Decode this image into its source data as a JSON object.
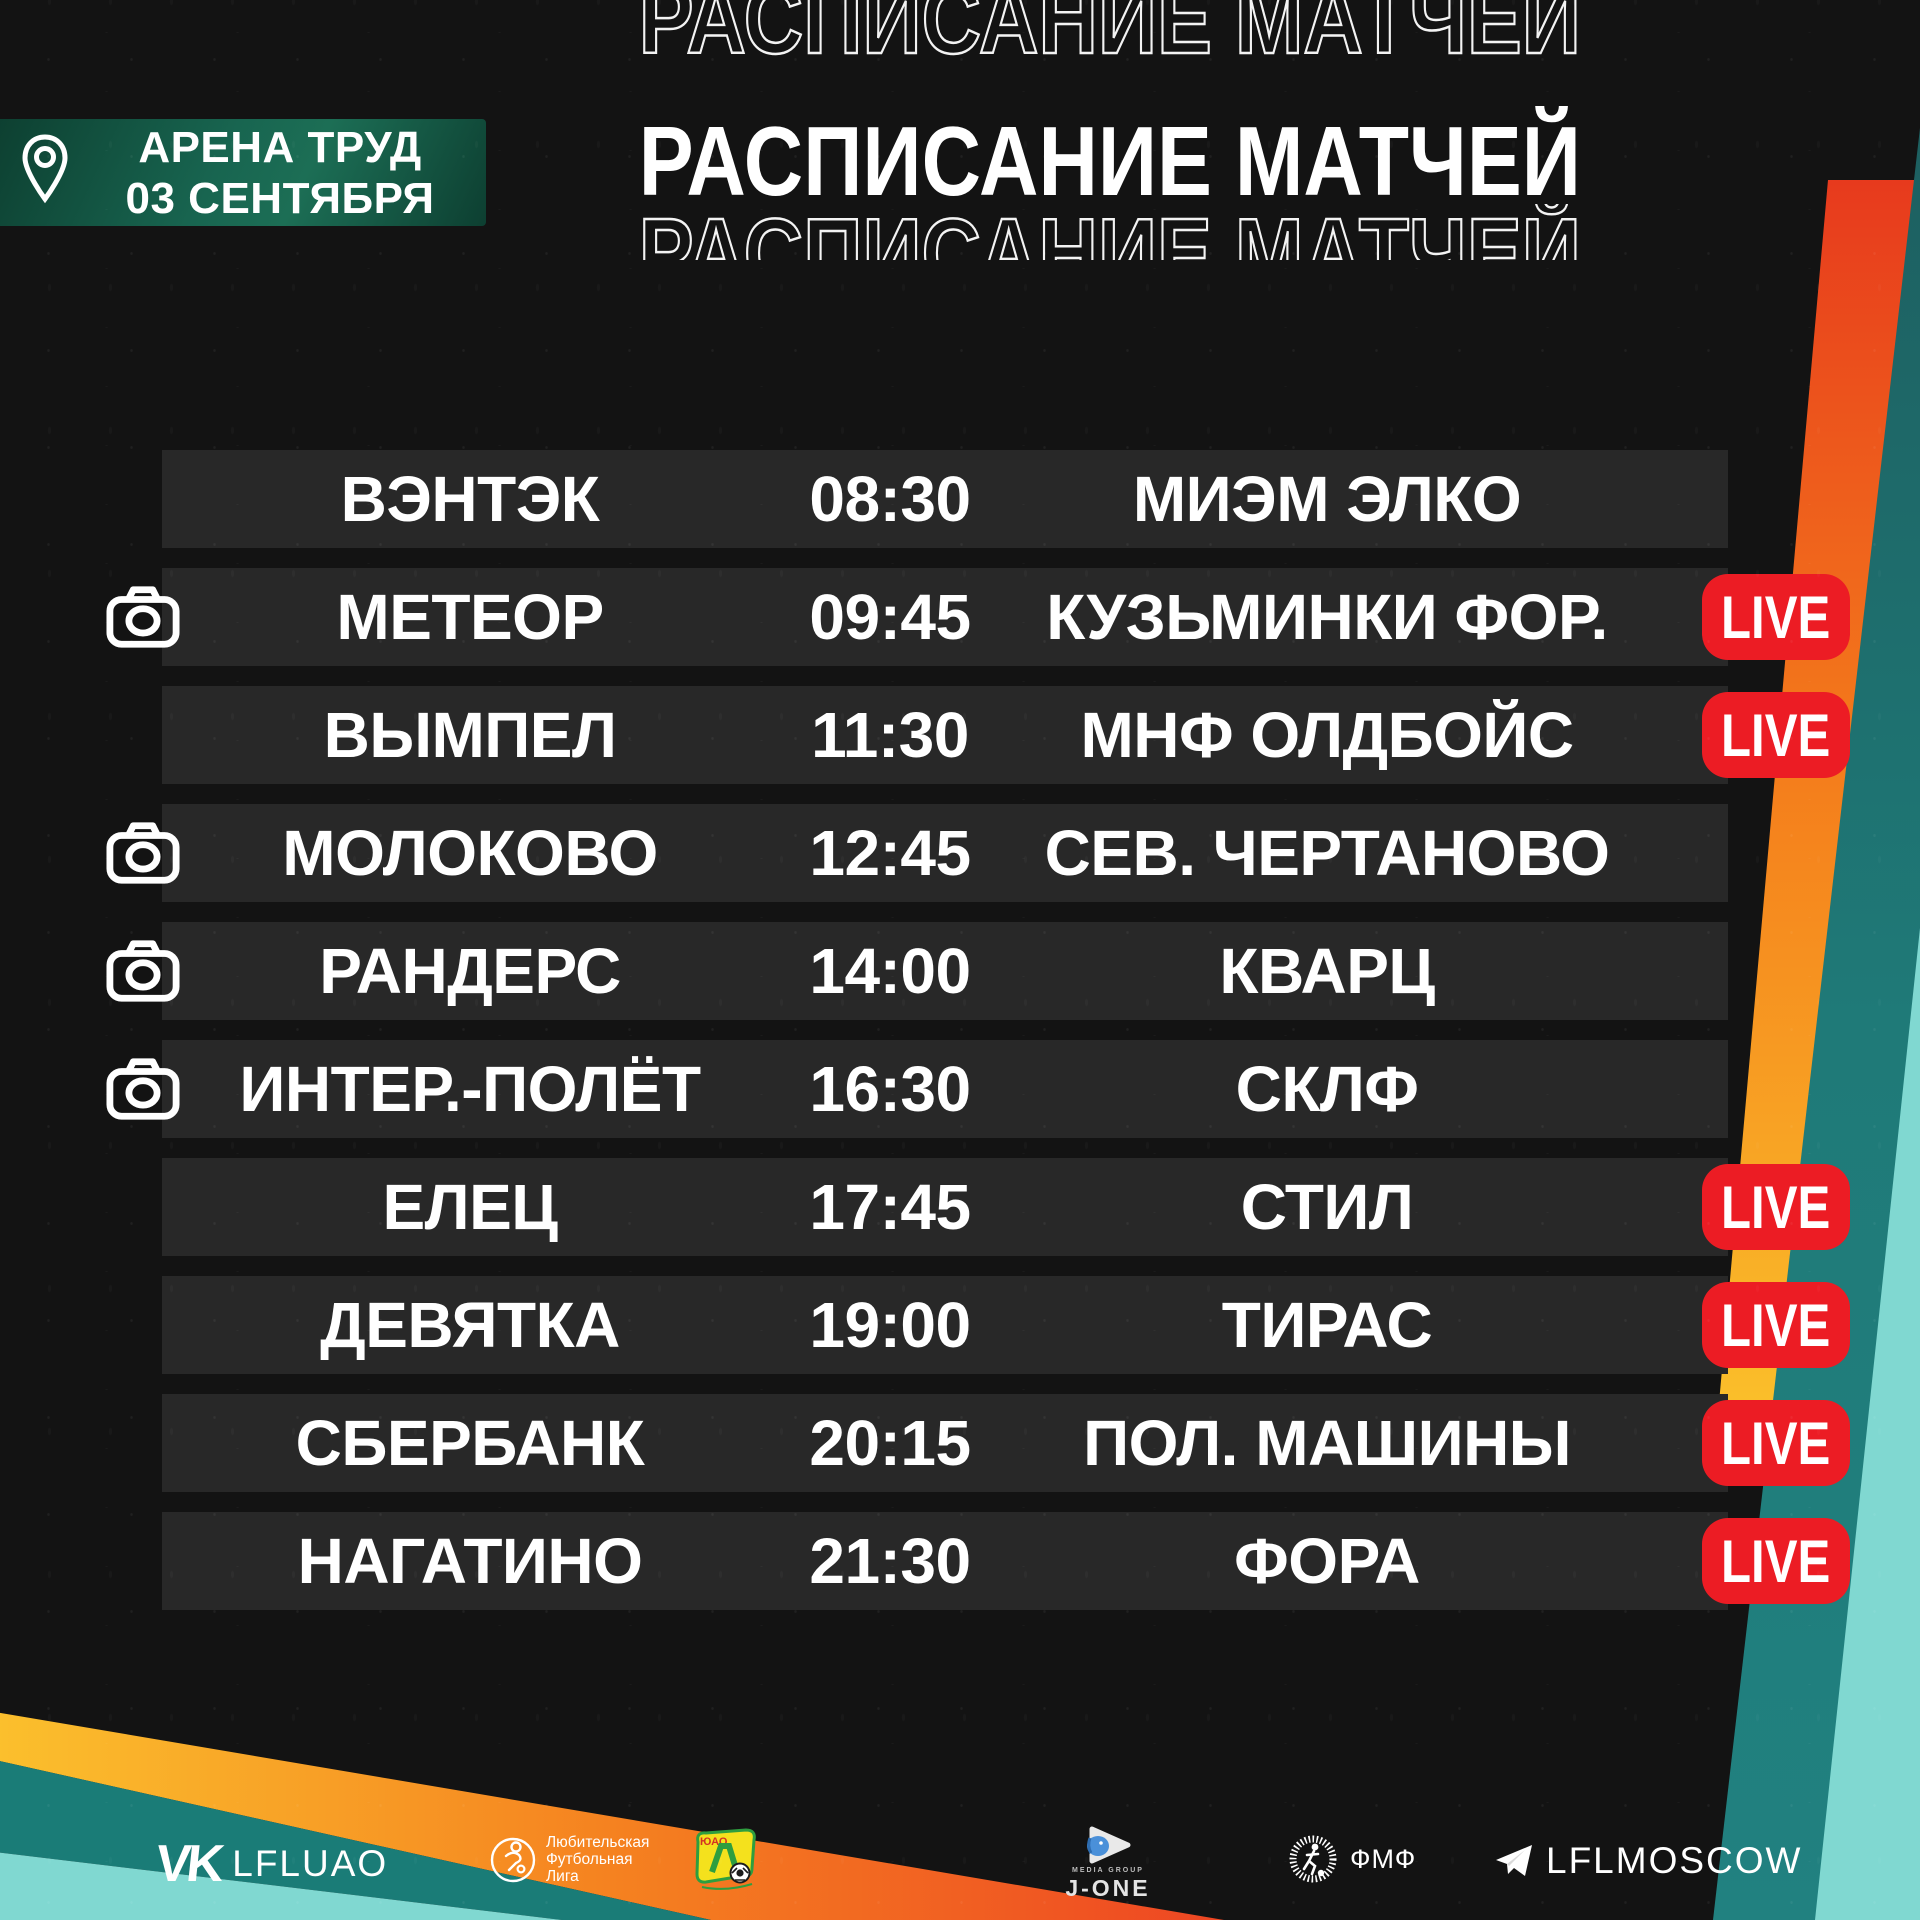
{
  "header": {
    "venue_badge": {
      "venue": "АРЕНА ТРУД",
      "date": "03 СЕНТЯБРЯ"
    },
    "title": "РАСПИСАНИЕ МАТЧЕЙ",
    "title_ghost": "РАСПИСАНИЕ МАТЧЕЙ"
  },
  "schedule": {
    "live_label": "LIVE",
    "rows": [
      {
        "home": "ВЭНТЭК",
        "time": "08:30",
        "away": "МИЭМ ЭЛКО",
        "camera": false,
        "live": false
      },
      {
        "home": "МЕТЕОР",
        "time": "09:45",
        "away": "КУЗЬМИНКИ ФОР.",
        "camera": true,
        "live": true
      },
      {
        "home": "ВЫМПЕЛ",
        "time": "11:30",
        "away": "МНФ ОЛДБОЙС",
        "camera": false,
        "live": true
      },
      {
        "home": "МОЛОКОВО",
        "time": "12:45",
        "away": "СЕВ. ЧЕРТАНОВО",
        "camera": true,
        "live": false
      },
      {
        "home": "РАНДЕРС",
        "time": "14:00",
        "away": "КВАРЦ",
        "camera": true,
        "live": false
      },
      {
        "home": "ИНТЕР.-ПОЛЁТ",
        "time": "16:30",
        "away": "СКЛФ",
        "camera": true,
        "live": false
      },
      {
        "home": "ЕЛЕЦ",
        "time": "17:45",
        "away": "СТИЛ",
        "camera": false,
        "live": true
      },
      {
        "home": "ДЕВЯТКА",
        "time": "19:00",
        "away": "ТИРАС",
        "camera": false,
        "live": true
      },
      {
        "home": "СБЕРБАНК",
        "time": "20:15",
        "away": "ПОЛ. МАШИНЫ",
        "camera": false,
        "live": true
      },
      {
        "home": "НАГАТИНО",
        "time": "21:30",
        "away": "ФОРА",
        "camera": false,
        "live": true
      }
    ]
  },
  "footer": {
    "vk": {
      "glyph": "VK",
      "label": "LFLUAO"
    },
    "lfl": {
      "line1": "Любительская",
      "line2": "Футбольная",
      "line3": "Лига"
    },
    "uao": {
      "text": "ЮАО",
      "letter": "Л"
    },
    "jone": {
      "sub": "MEDIA GROUP",
      "label": "J-ONE"
    },
    "fmf": {
      "label": "ФМФ"
    },
    "telegram": {
      "label": "LFLMOSCOW"
    }
  },
  "colors": {
    "background": "#131313",
    "row_background": "#282828",
    "accent_red": "#ec1c24",
    "teal": "#1f7d7b",
    "light_teal": "#80d8d1",
    "orange": "#f47b1b",
    "yellow": "#fbc02d",
    "badge_green": "#176550",
    "text": "#ffffff"
  }
}
